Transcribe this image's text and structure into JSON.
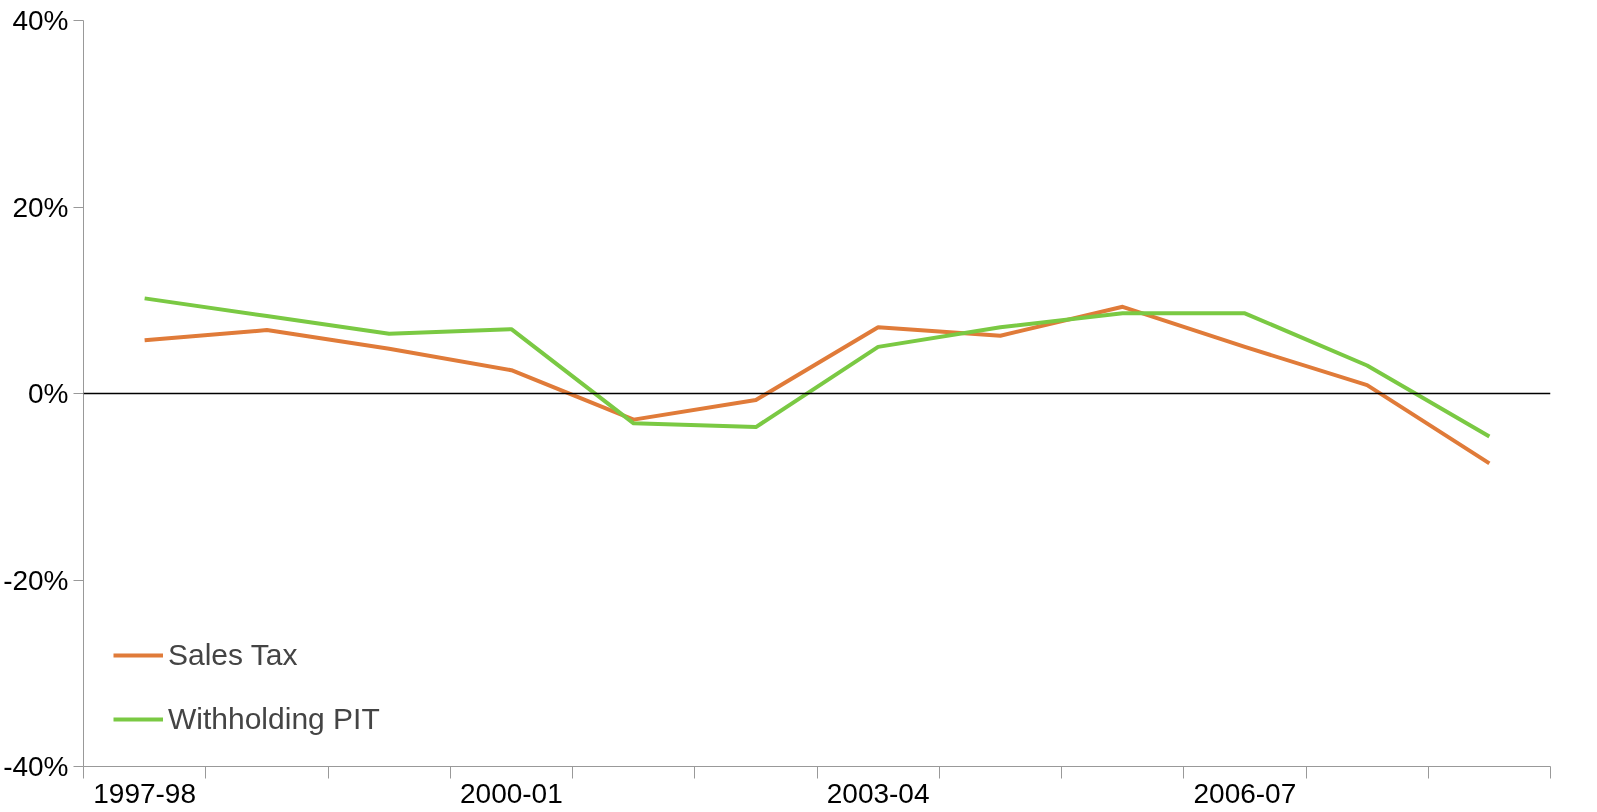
{
  "chart_data": {
    "type": "line",
    "categories": [
      "1997-98",
      null,
      null,
      "2000-01",
      null,
      null,
      "2003-04",
      null,
      null,
      "2006-07",
      null,
      null
    ],
    "series": [
      {
        "name": "Sales Tax",
        "color": "#e07b39",
        "values": [
          5.7,
          6.8,
          4.8,
          2.5,
          -2.8,
          -0.7,
          7.1,
          6.2,
          9.3,
          5.0,
          0.9,
          -7.5
        ]
      },
      {
        "name": "Withholding PIT",
        "color": "#7ac943",
        "values": [
          10.2,
          8.3,
          6.4,
          6.9,
          -3.2,
          -3.6,
          5.0,
          7.1,
          8.6,
          8.6,
          3.0,
          -4.6
        ]
      }
    ],
    "ylim": [
      -40,
      40
    ],
    "yticks": [
      {
        "value": -40,
        "label": "-40%"
      },
      {
        "value": -20,
        "label": "-20%"
      },
      {
        "value": 0,
        "label": "0%"
      },
      {
        "value": 20,
        "label": "20%"
      },
      {
        "value": 40,
        "label": "40%"
      }
    ],
    "ref_lines": [
      {
        "axis": "y",
        "value": 0,
        "color": "#000000"
      }
    ],
    "grid": false,
    "legend": "bottom left",
    "marker": "none",
    "line_style": "solid"
  }
}
